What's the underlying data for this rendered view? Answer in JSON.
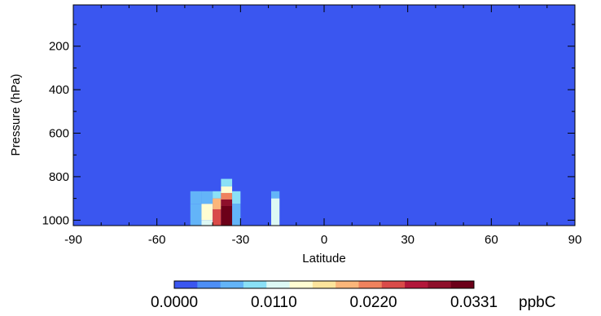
{
  "chart_data": {
    "type": "heatmap",
    "xlabel": "Latitude",
    "ylabel": "Pressure (hPa)",
    "xlim": [
      -90,
      90
    ],
    "ylim": [
      1025,
      10
    ],
    "x_ticks": [
      "-90",
      "-60",
      "-30",
      "0",
      "30",
      "60",
      "90"
    ],
    "y_ticks": [
      "200",
      "400",
      "600",
      "800",
      "1000"
    ],
    "background_value": 0.0,
    "cells": [
      {
        "lat": [
          -48,
          -44
        ],
        "p": [
          867,
          925
        ],
        "value": 0.0055
      },
      {
        "lat": [
          -48,
          -44
        ],
        "p": [
          925,
          1025
        ],
        "value": 0.0055
      },
      {
        "lat": [
          -44,
          -40
        ],
        "p": [
          867,
          925
        ],
        "value": 0.0055
      },
      {
        "lat": [
          -44,
          -40
        ],
        "p": [
          925,
          1000
        ],
        "value": 0.015
      },
      {
        "lat": [
          -44,
          -40
        ],
        "p": [
          1000,
          1025
        ],
        "value": 0.012
      },
      {
        "lat": [
          -40,
          -37
        ],
        "p": [
          867,
          900
        ],
        "value": 0.008
      },
      {
        "lat": [
          -40,
          -37
        ],
        "p": [
          900,
          950
        ],
        "value": 0.019
      },
      {
        "lat": [
          -40,
          -37
        ],
        "p": [
          950,
          1025
        ],
        "value": 0.023
      },
      {
        "lat": [
          -37,
          -33
        ],
        "p": [
          810,
          845
        ],
        "value": 0.008
      },
      {
        "lat": [
          -37,
          -33
        ],
        "p": [
          845,
          875
        ],
        "value": 0.013
      },
      {
        "lat": [
          -37,
          -33
        ],
        "p": [
          875,
          905
        ],
        "value": 0.022
      },
      {
        "lat": [
          -37,
          -33
        ],
        "p": [
          905,
          935
        ],
        "value": 0.03
      },
      {
        "lat": [
          -37,
          -33
        ],
        "p": [
          935,
          1025
        ],
        "value": 0.0331
      },
      {
        "lat": [
          -33,
          -30
        ],
        "p": [
          867,
          925
        ],
        "value": 0.008
      },
      {
        "lat": [
          -33,
          -30
        ],
        "p": [
          925,
          1025
        ],
        "value": 0.006
      },
      {
        "lat": [
          -19,
          -16
        ],
        "p": [
          867,
          900
        ],
        "value": 0.0055
      },
      {
        "lat": [
          -19,
          -16
        ],
        "p": [
          900,
          1025
        ],
        "value": 0.011
      }
    ],
    "colorbar": {
      "min": 0.0,
      "max": 0.0331,
      "tick_labels": [
        "0.0000",
        "0.0110",
        "0.0220",
        "0.0331"
      ],
      "units": "ppbC",
      "colors": [
        "#3a56f0",
        "#4d8ef5",
        "#63b4f8",
        "#8ae0f6",
        "#dcf8f4",
        "#fffdd2",
        "#fde49c",
        "#fbb67a",
        "#ef825d",
        "#d94b49",
        "#b2173a",
        "#8e0f2b",
        "#6c0019"
      ]
    }
  }
}
